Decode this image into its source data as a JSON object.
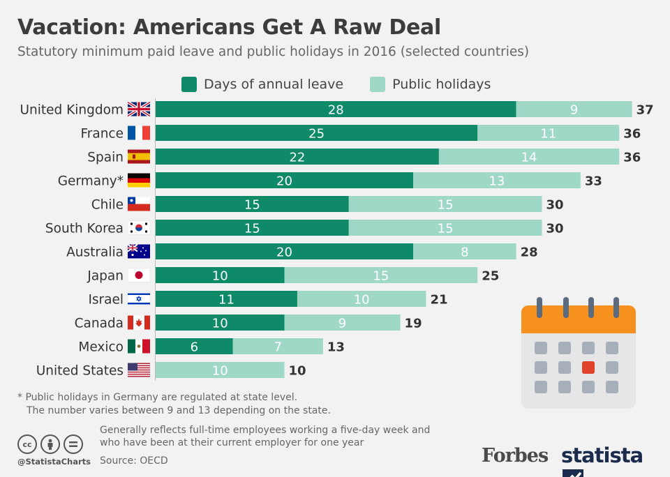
{
  "header": {
    "title": "Vacation: Americans Get A Raw Deal",
    "subtitle": "Statutory minimum paid leave and public holidays in 2016 (selected countries)"
  },
  "chart_data": {
    "type": "bar",
    "orientation": "horizontal",
    "stacked": true,
    "categories": [
      "United Kingdom",
      "France",
      "Spain",
      "Germany*",
      "Chile",
      "South Korea",
      "Australia",
      "Japan",
      "Israel",
      "Canada",
      "Mexico",
      "United States"
    ],
    "series": [
      {
        "name": "Days of annual leave",
        "color": "#0e8a68",
        "values": [
          28,
          25,
          22,
          20,
          15,
          15,
          20,
          10,
          11,
          10,
          6,
          0
        ]
      },
      {
        "name": "Public holidays",
        "color": "#9fd8c6",
        "values": [
          9,
          11,
          14,
          13,
          15,
          15,
          8,
          15,
          10,
          9,
          7,
          10
        ]
      }
    ],
    "totals": [
      37,
      36,
      36,
      33,
      30,
      30,
      28,
      25,
      21,
      19,
      13,
      10
    ],
    "xlim": [
      0,
      37
    ],
    "legend_position": "top",
    "grid": false
  },
  "flags": [
    "uk-flag-icon",
    "france-flag-icon",
    "spain-flag-icon",
    "germany-flag-icon",
    "chile-flag-icon",
    "south-korea-flag-icon",
    "australia-flag-icon",
    "japan-flag-icon",
    "israel-flag-icon",
    "canada-flag-icon",
    "mexico-flag-icon",
    "usa-flag-icon"
  ],
  "footer": {
    "footnote_line1": "* Public holidays in Germany are regulated at state level.",
    "footnote_line2": "The number varies between 9 and 13 depending on the state.",
    "note_line1": "Generally reflects full-time employees working a five-day week and",
    "note_line2": "who have been at their current employer for one year",
    "source": "Source: OECD",
    "handle": "@StatistaCharts",
    "forbes": "Forbes",
    "statista": "statista"
  }
}
